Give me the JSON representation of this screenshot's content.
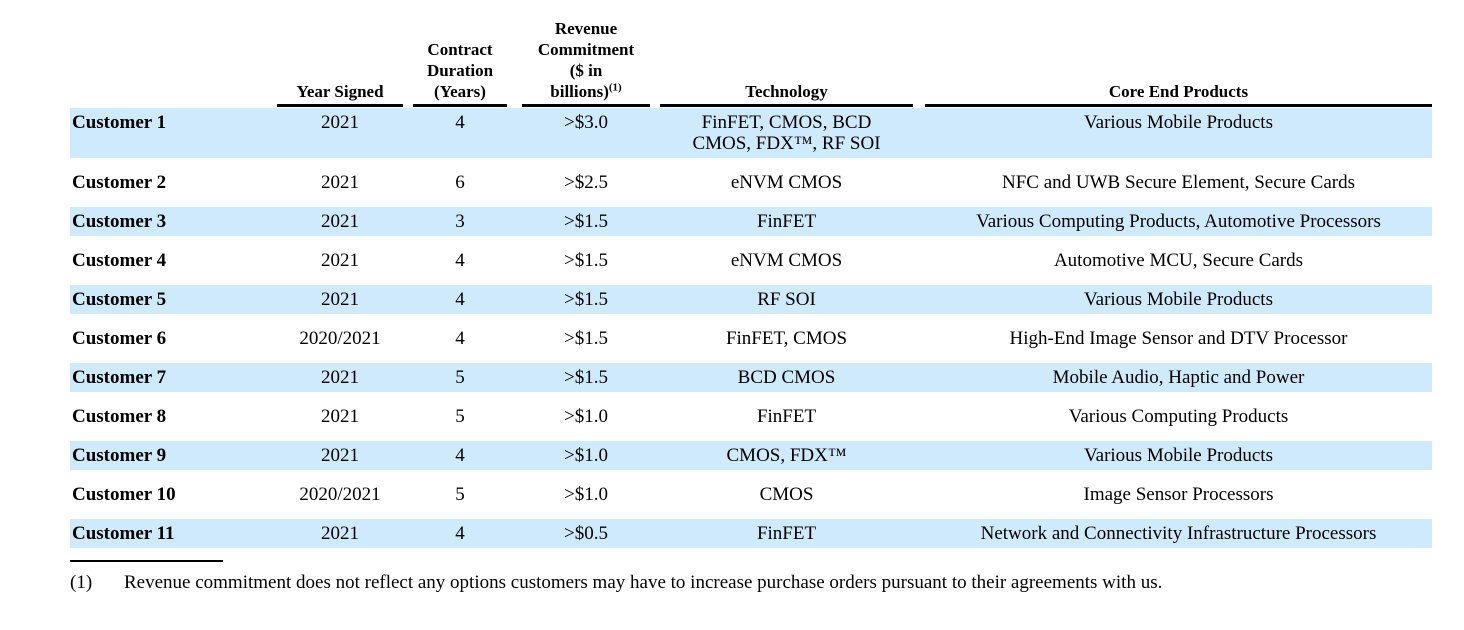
{
  "colors": {
    "row_highlight": "#cfeafc",
    "rule": "#000000",
    "background": "#ffffff"
  },
  "table": {
    "headers": {
      "customer": "",
      "year_signed": "Year Signed",
      "contract_duration": "Contract\nDuration\n(Years)",
      "revenue_commitment": "Revenue\nCommitment\n($ in\nbillions)",
      "revenue_commitment_footnote_ref": "(1)",
      "technology": "Technology",
      "core_end_products": "Core End Products"
    },
    "rows": [
      {
        "customer": "Customer 1",
        "year_signed": "2021",
        "contract_duration": "4",
        "revenue_commitment": ">$3.0",
        "technology": "FinFET, CMOS, BCD\nCMOS, FDX™, RF SOI",
        "core_end_products": "Various Mobile Products",
        "highlighted": true
      },
      {
        "customer": "Customer 2",
        "year_signed": "2021",
        "contract_duration": "6",
        "revenue_commitment": ">$2.5",
        "technology": "eNVM CMOS",
        "core_end_products": "NFC and UWB Secure Element, Secure Cards",
        "highlighted": false
      },
      {
        "customer": "Customer 3",
        "year_signed": "2021",
        "contract_duration": "3",
        "revenue_commitment": ">$1.5",
        "technology": "FinFET",
        "core_end_products": "Various Computing Products, Automotive Processors",
        "highlighted": true
      },
      {
        "customer": "Customer 4",
        "year_signed": "2021",
        "contract_duration": "4",
        "revenue_commitment": ">$1.5",
        "technology": "eNVM CMOS",
        "core_end_products": "Automotive MCU, Secure Cards",
        "highlighted": false
      },
      {
        "customer": "Customer 5",
        "year_signed": "2021",
        "contract_duration": "4",
        "revenue_commitment": ">$1.5",
        "technology": "RF SOI",
        "core_end_products": "Various Mobile Products",
        "highlighted": true
      },
      {
        "customer": "Customer 6",
        "year_signed": "2020/2021",
        "contract_duration": "4",
        "revenue_commitment": ">$1.5",
        "technology": "FinFET, CMOS",
        "core_end_products": "High-End Image Sensor and DTV Processor",
        "highlighted": false
      },
      {
        "customer": "Customer 7",
        "year_signed": "2021",
        "contract_duration": "5",
        "revenue_commitment": ">$1.5",
        "technology": "BCD CMOS",
        "core_end_products": "Mobile Audio, Haptic and Power",
        "highlighted": true
      },
      {
        "customer": "Customer 8",
        "year_signed": "2021",
        "contract_duration": "5",
        "revenue_commitment": ">$1.0",
        "technology": "FinFET",
        "core_end_products": "Various Computing Products",
        "highlighted": false
      },
      {
        "customer": "Customer 9",
        "year_signed": "2021",
        "contract_duration": "4",
        "revenue_commitment": ">$1.0",
        "technology": "CMOS, FDX™",
        "core_end_products": "Various Mobile Products",
        "highlighted": true
      },
      {
        "customer": "Customer 10",
        "year_signed": "2020/2021",
        "contract_duration": "5",
        "revenue_commitment": ">$1.0",
        "technology": "CMOS",
        "core_end_products": "Image Sensor Processors",
        "highlighted": false
      },
      {
        "customer": "Customer 11",
        "year_signed": "2021",
        "contract_duration": "4",
        "revenue_commitment": ">$0.5",
        "technology": "FinFET",
        "core_end_products": "Network and Connectivity Infrastructure Processors",
        "highlighted": true
      }
    ]
  },
  "footnote": {
    "marker": "(1)",
    "text": "Revenue commitment does not reflect any options customers may have to increase purchase orders pursuant to their agreements with us."
  }
}
